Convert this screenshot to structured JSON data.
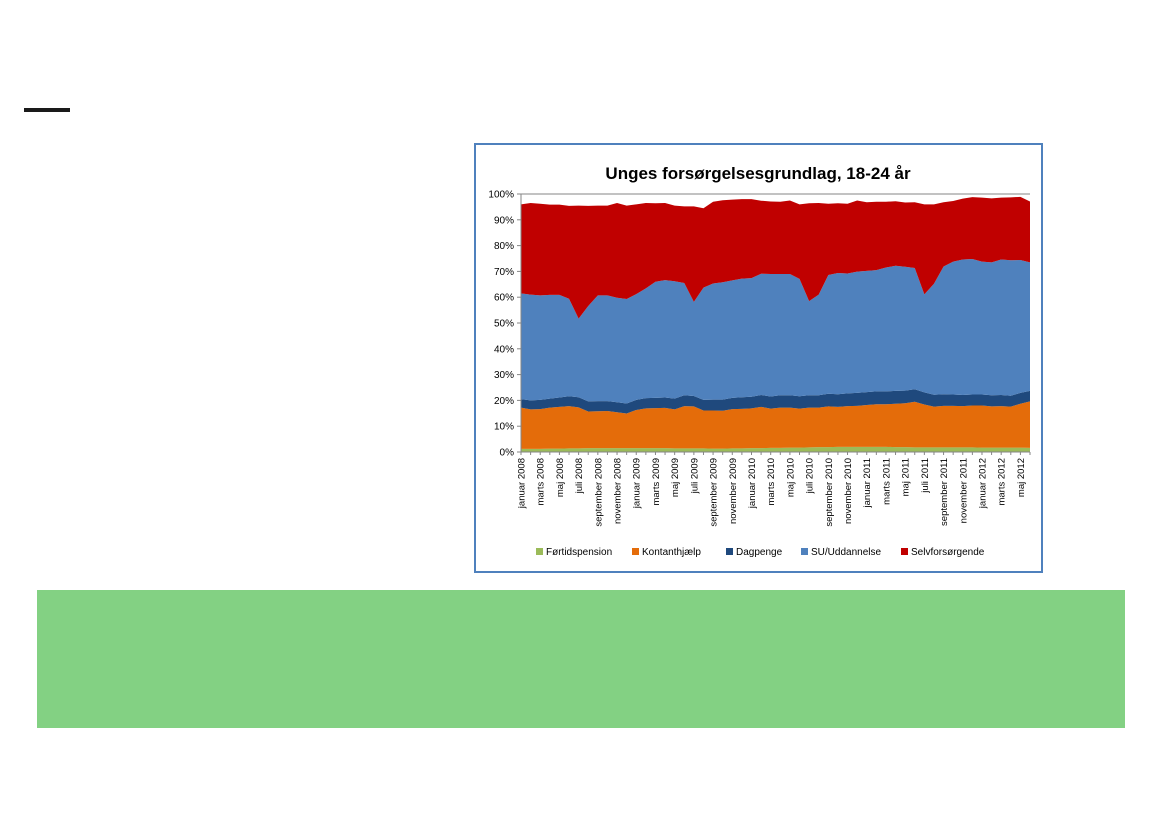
{
  "chart_data": {
    "type": "area",
    "stacked": true,
    "normalized": true,
    "title": "Unges forsørgelsesgrundlag, 18-24 år",
    "xlabel": "",
    "ylabel": "",
    "ylim": [
      0,
      100
    ],
    "y_ticks": [
      "0%",
      "10%",
      "20%",
      "30%",
      "40%",
      "50%",
      "60%",
      "70%",
      "80%",
      "90%",
      "100%"
    ],
    "x": [
      "januar 2008",
      "februar 2008",
      "marts 2008",
      "april 2008",
      "maj 2008",
      "juni 2008",
      "juli 2008",
      "august 2008",
      "september 2008",
      "oktober 2008",
      "november 2008",
      "december 2008",
      "januar 2009",
      "februar 2009",
      "marts 2009",
      "april 2009",
      "maj 2009",
      "juni 2009",
      "juli 2009",
      "august 2009",
      "september 2009",
      "oktober 2009",
      "november 2009",
      "december 2009",
      "januar 2010",
      "februar 2010",
      "marts 2010",
      "april 2010",
      "maj 2010",
      "juni 2010",
      "juli 2010",
      "august 2010",
      "september 2010",
      "oktober 2010",
      "november 2010",
      "december 2010",
      "januar 2011",
      "februar 2011",
      "marts 2011",
      "april 2011",
      "maj 2011",
      "juni 2011",
      "juli 2011",
      "august 2011",
      "september 2011",
      "oktober 2011",
      "november 2011",
      "december 2011",
      "januar 2012",
      "februar 2012",
      "marts 2012",
      "april 2012",
      "maj 2012",
      "juni 2012"
    ],
    "x_tick_labels": [
      "januar 2008",
      "marts 2008",
      "maj 2008",
      "juli 2008",
      "september 2008",
      "november 2008",
      "januar 2009",
      "marts 2009",
      "maj 2009",
      "juli 2009",
      "september 2009",
      "november 2009",
      "januar 2010",
      "marts 2010",
      "maj 2010",
      "juli 2010",
      "september 2010",
      "november 2010",
      "januar 2011",
      "marts 2011",
      "maj 2011",
      "juli 2011",
      "september 2011",
      "november 2011",
      "januar 2012",
      "marts 2012",
      "maj 2012"
    ],
    "series": [
      {
        "name": "Førtidspension",
        "color": "#9bbb59",
        "values": [
          1.2,
          1.2,
          1.2,
          1.3,
          1.3,
          1.4,
          1.4,
          1.5,
          1.5,
          1.5,
          1.5,
          1.5,
          1.5,
          1.5,
          1.5,
          1.5,
          1.4,
          1.4,
          1.4,
          1.4,
          1.3,
          1.3,
          1.4,
          1.4,
          1.5,
          1.5,
          1.6,
          1.6,
          1.7,
          1.7,
          1.8,
          1.9,
          1.9,
          2.0,
          2.0,
          2.0,
          2.0,
          2.0,
          2.0,
          1.9,
          1.9,
          1.8,
          1.8,
          1.8,
          1.8,
          1.8,
          1.8,
          1.8,
          1.7,
          1.7,
          1.7,
          1.7,
          1.7,
          1.6
        ]
      },
      {
        "name": "Kontanthjælp",
        "color": "#e46c0a",
        "values": [
          16.0,
          15.3,
          15.4,
          15.9,
          16.2,
          16.4,
          15.9,
          14.2,
          14.3,
          14.4,
          13.9,
          13.4,
          14.8,
          15.4,
          15.5,
          15.6,
          15.1,
          16.4,
          16.3,
          14.7,
          14.8,
          14.7,
          15.2,
          15.3,
          15.4,
          16.0,
          15.2,
          15.6,
          15.5,
          15.1,
          15.4,
          15.3,
          15.8,
          15.5,
          15.8,
          15.9,
          16.2,
          16.5,
          16.5,
          16.8,
          17.0,
          17.7,
          16.6,
          15.8,
          16.1,
          16.1,
          16.0,
          16.2,
          16.3,
          16.0,
          16.1,
          15.9,
          17.0,
          18.0
        ]
      },
      {
        "name": "Dagpenge",
        "color": "#1f497d",
        "values": [
          3.3,
          3.5,
          3.6,
          3.5,
          3.6,
          3.8,
          3.9,
          3.9,
          3.9,
          3.8,
          3.9,
          3.9,
          3.9,
          4.0,
          4.0,
          4.0,
          4.2,
          4.2,
          4.0,
          4.1,
          4.2,
          4.3,
          4.4,
          4.5,
          4.5,
          4.6,
          4.7,
          4.8,
          4.8,
          4.8,
          4.8,
          4.8,
          4.9,
          4.9,
          4.9,
          5.0,
          5.0,
          5.0,
          5.0,
          5.0,
          4.9,
          4.8,
          4.7,
          4.6,
          4.5,
          4.4,
          4.3,
          4.3,
          4.3,
          4.3,
          4.3,
          4.2,
          4.2,
          4.1
        ]
      },
      {
        "name": "SU/Uddannelse",
        "color": "#4f81bd",
        "values": [
          41.0,
          41.0,
          40.5,
          40.2,
          39.8,
          37.8,
          30.5,
          37.0,
          41.0,
          41.0,
          40.5,
          40.5,
          41.0,
          42.5,
          45.0,
          45.5,
          45.5,
          43.5,
          36.5,
          43.5,
          45.0,
          45.5,
          45.5,
          46.0,
          46.0,
          47.0,
          47.5,
          47.0,
          47.0,
          45.5,
          36.5,
          39.0,
          46.0,
          47.0,
          46.5,
          47.0,
          47.0,
          47.0,
          48.0,
          48.5,
          48.0,
          47.0,
          38.0,
          43.0,
          49.5,
          51.5,
          52.5,
          52.5,
          51.5,
          51.5,
          52.5,
          52.5,
          51.5,
          49.8
        ]
      },
      {
        "name": "Selvforsørgende",
        "color": "#c00000",
        "values": [
          34.5,
          35.5,
          35.5,
          35.0,
          35.0,
          36.0,
          43.8,
          38.8,
          34.8,
          34.8,
          36.7,
          36.2,
          34.8,
          33.1,
          30.4,
          29.9,
          29.3,
          29.7,
          37.0,
          30.8,
          31.7,
          31.8,
          31.3,
          30.8,
          30.6,
          28.3,
          28.1,
          28.0,
          28.5,
          28.9,
          37.9,
          35.5,
          27.6,
          27.0,
          27.0,
          27.6,
          26.6,
          26.5,
          25.5,
          25.0,
          24.9,
          25.5,
          34.9,
          30.8,
          24.9,
          23.5,
          23.6,
          24.0,
          24.8,
          24.8,
          24.0,
          24.4,
          24.5,
          23.6
        ]
      }
    ],
    "legend": [
      "Førtidspension",
      "Kontanthjælp",
      "Dagpenge",
      "SU/Uddannelse",
      "Selvforsørgende"
    ],
    "legend_position": "bottom",
    "grid": false
  },
  "colors": {
    "frame_border": "#4f81bd",
    "green_band": "#83d183"
  }
}
